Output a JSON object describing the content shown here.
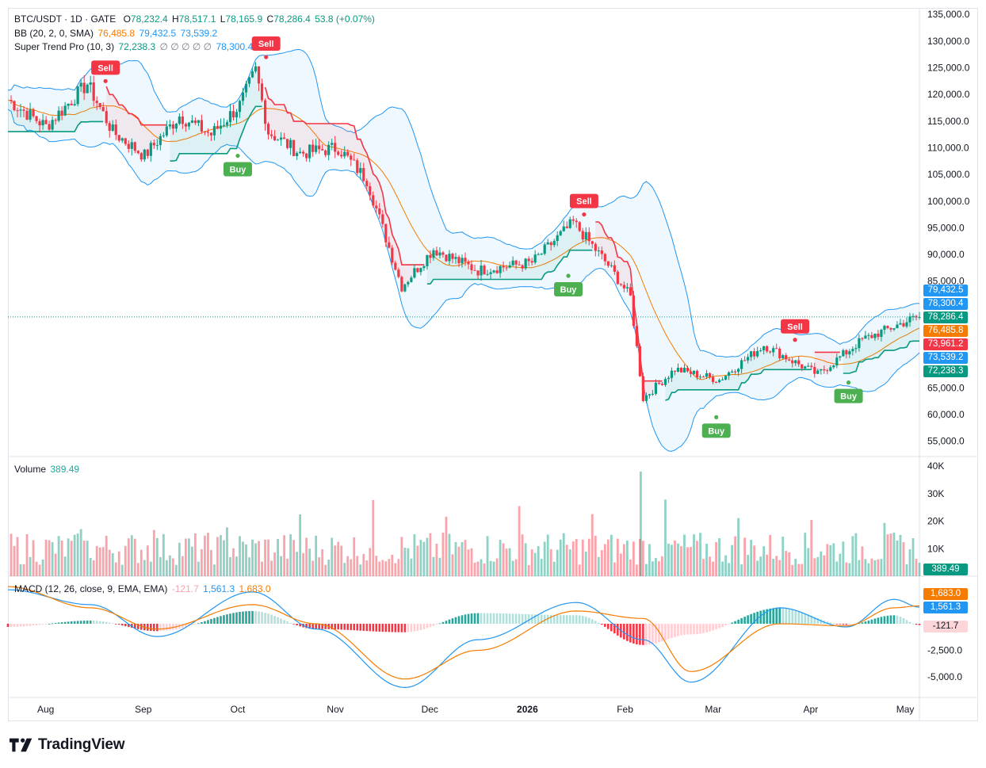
{
  "legend": {
    "symbol": "BTC/USDT · 1D · GATE",
    "o_label": "O",
    "o": "78,232.4",
    "h_label": "H",
    "h": "78,517.1",
    "l_label": "L",
    "l": "78,165.9",
    "c_label": "C",
    "c": "78,286.4",
    "change": "53.8 (+0.07%)",
    "bb_label": "BB (20, 2, 0, SMA)",
    "bb_basis": "76,485.8",
    "bb_upper": "79,432.5",
    "bb_lower": "73,539.2",
    "st_label": "Super Trend Pro (10, 3)",
    "st_value": "72,238.3",
    "st_blanks": "∅ ∅ ∅ ∅ ∅",
    "st_value2": "78,300.4",
    "volume_label": "Volume",
    "volume_value": "389.49",
    "macd_label": "MACD (12, 26, close, 9, EMA, EMA)",
    "macd_hist": "-121.7",
    "macd_line": "1,561.3",
    "macd_signal": "1,683.0"
  },
  "price_axis": {
    "ticks": [
      "135,000.0",
      "130,000.0",
      "125,000.0",
      "120,000.0",
      "115,000.0",
      "110,000.0",
      "105,000.0",
      "100,000.0",
      "95,000.0",
      "90,000.0",
      "85,000.0",
      "65,000.0",
      "60,000.0",
      "55,000.0"
    ],
    "badges": [
      {
        "text": "79,432.5",
        "color": "#2196f3"
      },
      {
        "text": "78,300.4",
        "color": "#2196f3"
      },
      {
        "text": "78,286.4",
        "color": "#089981"
      },
      {
        "text": "76,485.8",
        "color": "#f57c00"
      },
      {
        "text": "73,961.2",
        "color": "#f23645"
      },
      {
        "text": "73,539.2",
        "color": "#2196f3"
      },
      {
        "text": "72,238.3",
        "color": "#089981"
      }
    ]
  },
  "volume_axis": {
    "ticks": [
      "40K",
      "30K",
      "20K",
      "10K"
    ],
    "badge": "389.49"
  },
  "macd_axis": {
    "ticks": [
      "-2,500.0",
      "-5,000.0"
    ],
    "badges": [
      {
        "text": "1,683.0",
        "color": "#f57c00",
        "text_color": "#ffffff"
      },
      {
        "text": "1,561.3",
        "color": "#2196f3",
        "text_color": "#ffffff"
      },
      {
        "text": "-121.7",
        "color": "#fbd5d8",
        "text_color": "#131722"
      }
    ]
  },
  "time_axis": [
    "Aug",
    "Sep",
    "Oct",
    "Nov",
    "Dec",
    "2026",
    "Feb",
    "Mar",
    "Apr",
    "May"
  ],
  "signals": [
    {
      "type": "Sell",
      "label": "Sell"
    },
    {
      "type": "Buy",
      "label": "Buy"
    },
    {
      "type": "Sell",
      "label": "Sell"
    },
    {
      "type": "Sell",
      "label": "Sell"
    },
    {
      "type": "Buy",
      "label": "Buy"
    },
    {
      "type": "Buy",
      "label": "Buy"
    },
    {
      "type": "Sell",
      "label": "Sell"
    },
    {
      "type": "Buy",
      "label": "Buy"
    }
  ],
  "brand": "TradingView",
  "chart_data": {
    "type": "line",
    "title": "BTC/USDT · 1D · GATE",
    "x_range": [
      "2025-07-20",
      "2026-05-03"
    ],
    "ylim": [
      55000,
      135000
    ],
    "price_series": {
      "name": "BTC/USDT close (approx.)",
      "x": [
        "2025-07-20",
        "2025-08-01",
        "2025-08-14",
        "2025-08-22",
        "2025-09-01",
        "2025-09-12",
        "2025-09-22",
        "2025-10-01",
        "2025-10-06",
        "2025-10-10",
        "2025-10-20",
        "2025-11-01",
        "2025-11-10",
        "2025-11-21",
        "2025-12-01",
        "2025-12-15",
        "2026-01-01",
        "2026-01-14",
        "2026-01-25",
        "2026-02-01",
        "2026-02-05",
        "2026-02-15",
        "2026-03-01",
        "2026-03-15",
        "2026-04-01",
        "2026-04-15",
        "2026-05-01",
        "2026-05-03"
      ],
      "values": [
        119000,
        114000,
        122000,
        113000,
        108500,
        116000,
        112500,
        118000,
        124500,
        113000,
        109000,
        110000,
        104000,
        84000,
        91000,
        87000,
        88500,
        96000,
        88000,
        82000,
        63000,
        68500,
        66500,
        73000,
        67500,
        74000,
        78000,
        78286.4
      ]
    },
    "bollinger_bands": {
      "params": "20, 2, 0, SMA",
      "latest": {
        "basis": 76485.8,
        "upper": 79432.5,
        "lower": 73539.2
      }
    },
    "super_trend": {
      "params": "10, 3",
      "latest": 72238.3
    },
    "signals": [
      {
        "type": "Sell",
        "date": "2025-08-20",
        "price": 122500
      },
      {
        "type": "Buy",
        "date": "2025-10-01",
        "price": 108500
      },
      {
        "type": "Sell",
        "date": "2025-10-10",
        "price": 127000
      },
      {
        "type": "Sell",
        "date": "2026-01-19",
        "price": 97500
      },
      {
        "type": "Buy",
        "date": "2026-01-14",
        "price": 86000
      },
      {
        "type": "Buy",
        "date": "2026-03-02",
        "price": 59500
      },
      {
        "type": "Sell",
        "date": "2026-03-27",
        "price": 74000
      },
      {
        "type": "Buy",
        "date": "2026-04-13",
        "price": 66000
      }
    ],
    "volume": {
      "ylim": [
        0,
        40000
      ],
      "latest": 389.49,
      "peak": 38000
    },
    "macd": {
      "params": "12, 26, close, 9, EMA, EMA",
      "ylim": [
        -7000,
        4500
      ],
      "x": [
        "2025-07-20",
        "2025-08-15",
        "2025-09-05",
        "2025-10-05",
        "2025-10-25",
        "2025-11-22",
        "2025-12-15",
        "2026-01-15",
        "2026-02-05",
        "2026-02-20",
        "2026-03-20",
        "2026-04-10",
        "2026-04-25",
        "2026-05-03"
      ],
      "macd_line": [
        3200,
        1800,
        -1200,
        3000,
        -500,
        -6000,
        -1500,
        2000,
        -1500,
        -5500,
        1500,
        -300,
        2300,
        1561.3
      ],
      "signal_line": [
        3500,
        1500,
        -500,
        1800,
        0,
        -5200,
        -2500,
        1200,
        500,
        -4500,
        0,
        -200,
        1500,
        1683.0
      ],
      "latest_histogram": -121.7
    }
  }
}
